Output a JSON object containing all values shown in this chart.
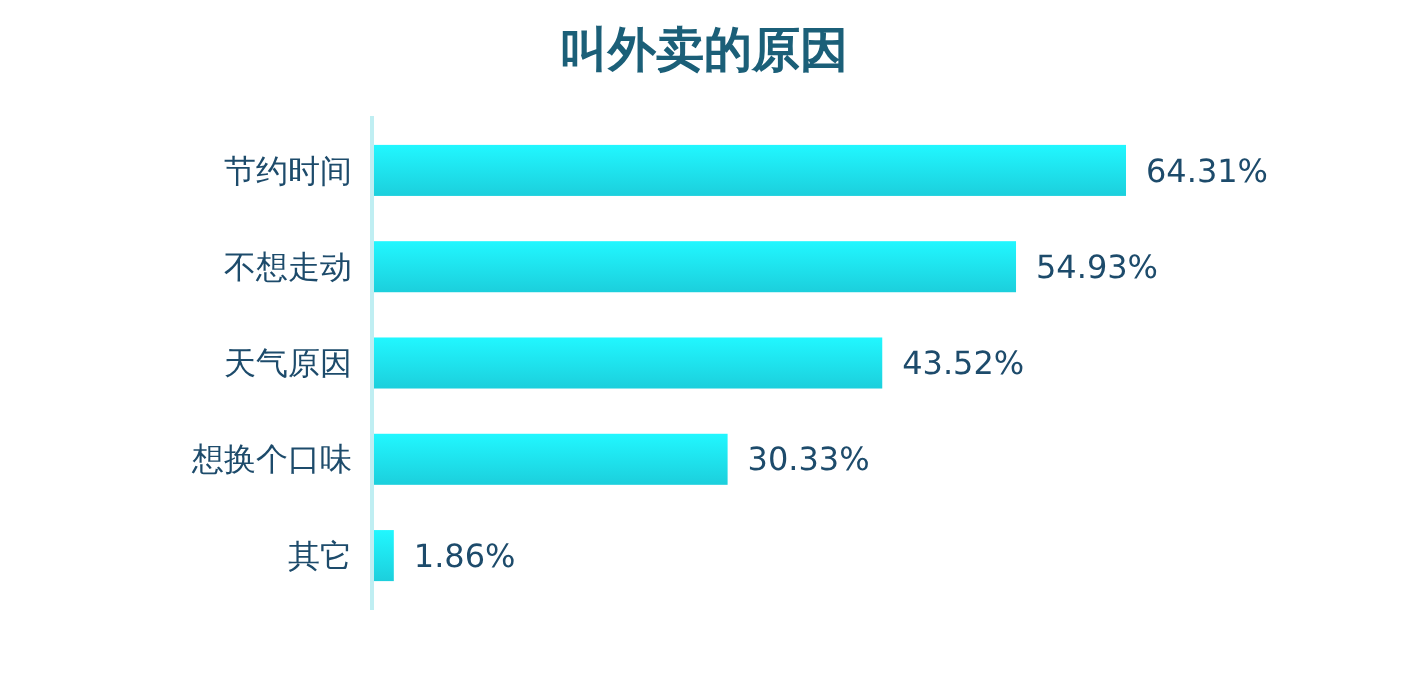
{
  "chart_data": {
    "type": "bar",
    "orientation": "horizontal",
    "title": "叫外卖的原因",
    "categories": [
      "节约时间",
      "不想走动",
      "天气原因",
      "想换个口味",
      "其它"
    ],
    "values": [
      64.31,
      54.93,
      43.52,
      30.33,
      1.86
    ],
    "value_labels": [
      "64.31%",
      "54.93%",
      "43.52%",
      "30.33%",
      "1.86%"
    ],
    "color": "#1ccfdc"
  }
}
